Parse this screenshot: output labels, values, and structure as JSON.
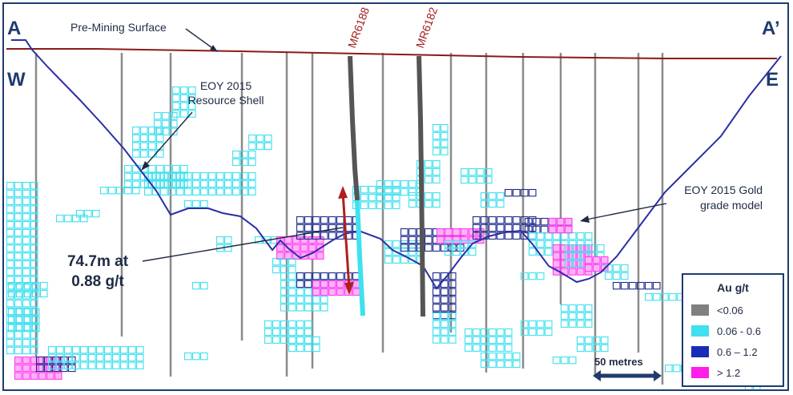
{
  "section": {
    "corner_west_top": "A",
    "corner_east_top": "A’",
    "corner_west": "W",
    "corner_east": "E"
  },
  "labels": {
    "surface": "Pre-Mining Surface",
    "resource_shell_line1": "EOY 2015",
    "resource_shell_line2": "Resource Shell",
    "grade_model_line1": "EOY 2015  Gold",
    "grade_model_line2": "grade model",
    "intercept_line1": "74.7m at",
    "intercept_line2": "0.88 g/t"
  },
  "drillholes": [
    {
      "id": "MR6188"
    },
    {
      "id": "MR6182"
    }
  ],
  "legend": {
    "title": "Au g/t",
    "items": [
      {
        "label": "<0.06",
        "color": "#808080"
      },
      {
        "label": "0.06 - 0.6",
        "color": "#3fe0ef"
      },
      {
        "label": "0.6 – 1.2",
        "color": "#1a2bb8"
      },
      {
        "label": "> 1.2",
        "color": "#ff1ee8"
      }
    ]
  },
  "scale_bar": {
    "label": "50 metres"
  },
  "colors": {
    "frame": "#1f3b6e",
    "surface_line": "#8b1a1a",
    "shell_line": "#2a2fa8",
    "drill_trace": "#777777",
    "low_block": "#3fe0ef",
    "mid_block": "#1f2a8c",
    "high_block": "#ff3df0",
    "intercept_arrow": "#b01e1e"
  }
}
